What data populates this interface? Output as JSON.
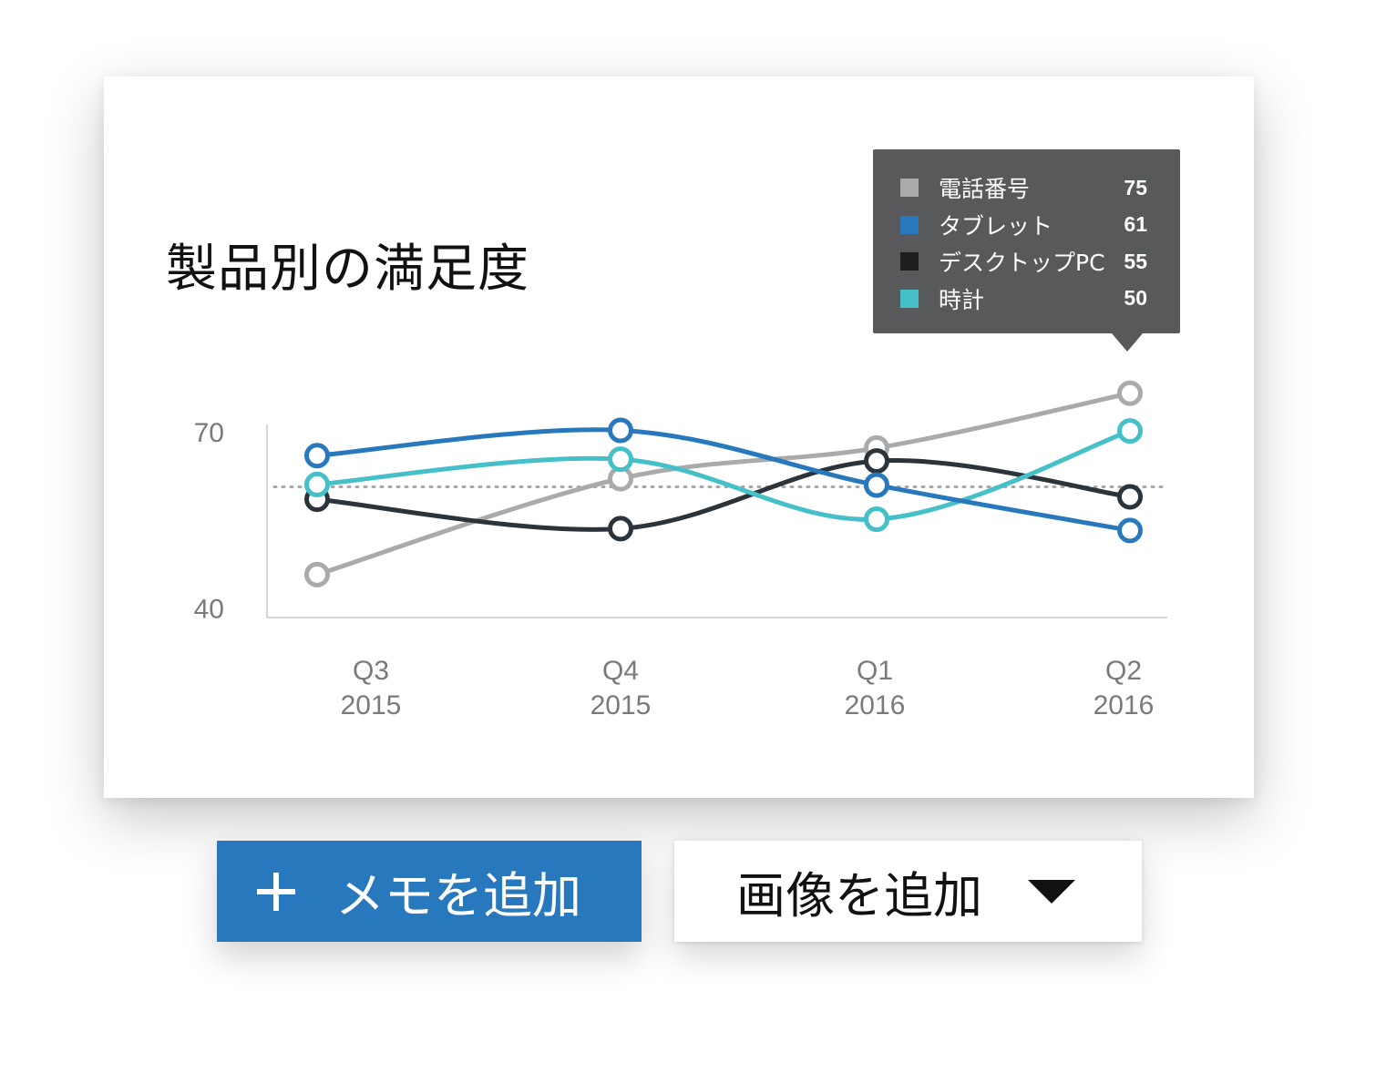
{
  "chart_data": {
    "type": "line",
    "title": "製品別の満足度",
    "categories": [
      [
        "Q3",
        "2015"
      ],
      [
        "Q4",
        "2015"
      ],
      [
        "Q1",
        "2016"
      ],
      [
        "Q2",
        "2016"
      ]
    ],
    "yticks": [
      "70",
      "40"
    ],
    "ytick_values": [
      70,
      40
    ],
    "ylim": [
      38.4,
      71.2
    ],
    "reference_value": 60.6,
    "reference_line_style": "dotted",
    "smooth": true,
    "marker": "hollow-circle",
    "series": [
      {
        "name": "電話番号",
        "color": "#aaaaaa",
        "values": [
          45.7,
          62.0,
          67.2,
          76.5
        ]
      },
      {
        "name": "デスクトップPC",
        "color": "#2b333b",
        "values": [
          58.5,
          53.5,
          65.0,
          58.9
        ]
      },
      {
        "name": "時計",
        "color": "#45bfc8",
        "values": [
          61.0,
          65.3,
          55.1,
          70.1
        ]
      },
      {
        "name": "タブレット",
        "color": "#2778bd",
        "values": [
          65.9,
          70.2,
          60.9,
          53.2
        ]
      }
    ],
    "tooltip": {
      "items": [
        {
          "name": "電話番号",
          "value": "75",
          "color": "#aaaaaa"
        },
        {
          "name": "タブレット",
          "value": "61",
          "color": "#2778bd"
        },
        {
          "name": "デスクトップPC",
          "value": "55",
          "color": "#1e1e1e"
        },
        {
          "name": "時計",
          "value": "50",
          "color": "#45bfc8"
        }
      ]
    }
  },
  "actions": {
    "add_memo_label": "メモを追加",
    "add_image_label": "画像を追加"
  },
  "icons": {
    "add_memo": "plus-icon",
    "add_image": "caret-down-icon"
  },
  "colors": {
    "primary_button": "#2778bd",
    "tooltip_bg": "#58595b",
    "axis": "#c8c8c8",
    "tick_text": "#7a7a7a"
  }
}
